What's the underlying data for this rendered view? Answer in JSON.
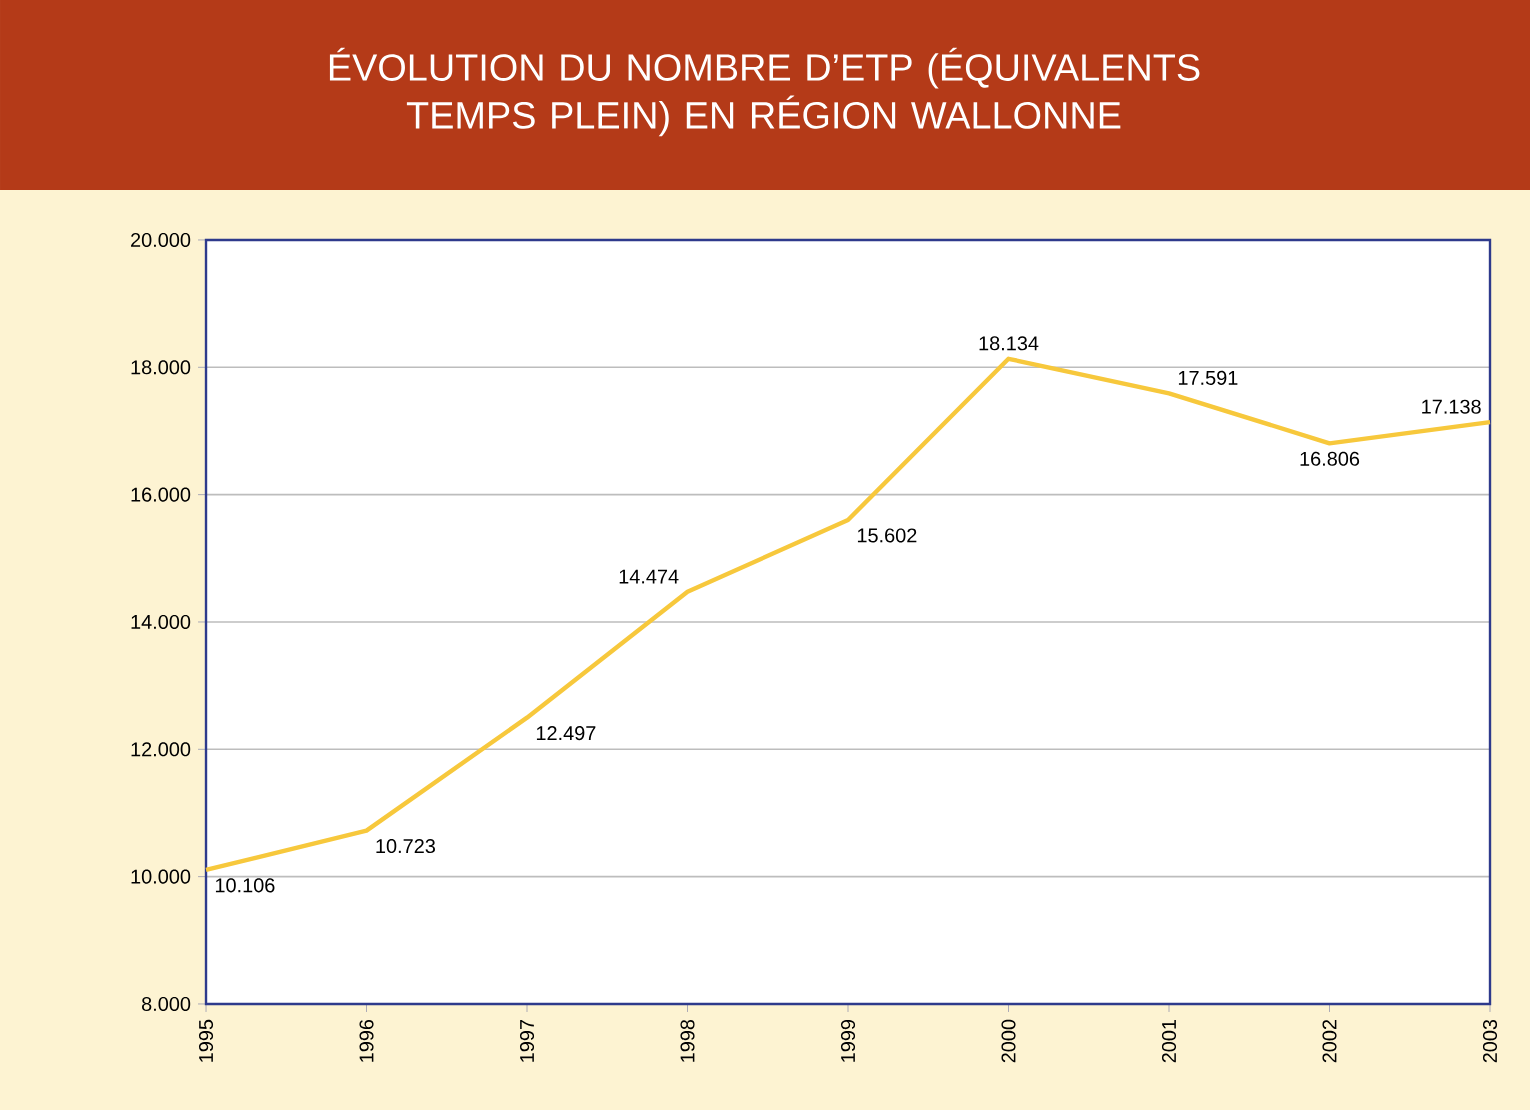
{
  "chart_data": {
    "type": "line",
    "title": "ÉVOLUTION DU NOMBRE D’ETP (ÉQUIVALENTS TEMPS PLEIN) EN RÉGION WALLONNE",
    "categories": [
      "1995",
      "1996",
      "1997",
      "1998",
      "1999",
      "2000",
      "2001",
      "2002",
      "2003"
    ],
    "series": [
      {
        "color": "#f7c83c",
        "values": [
          10106,
          10723,
          12497,
          14474,
          15602,
          18134,
          17591,
          16806,
          17138
        ],
        "value_labels": [
          "10.106",
          "10.723",
          "12.497",
          "14.474",
          "15.602",
          "18.134",
          "17.591",
          "16.806",
          "17.138"
        ]
      }
    ],
    "ylim": [
      8000,
      20000
    ],
    "yticks": [
      {
        "value": 8000,
        "label": "8.000"
      },
      {
        "value": 10000,
        "label": "10.000"
      },
      {
        "value": 12000,
        "label": "12.000"
      },
      {
        "value": 14000,
        "label": "14.000"
      },
      {
        "value": 16000,
        "label": "16.000"
      },
      {
        "value": 18000,
        "label": "18.000"
      },
      {
        "value": 20000,
        "label": "20.000"
      }
    ],
    "grid": "y",
    "marker": "none",
    "line_style": "solid"
  }
}
